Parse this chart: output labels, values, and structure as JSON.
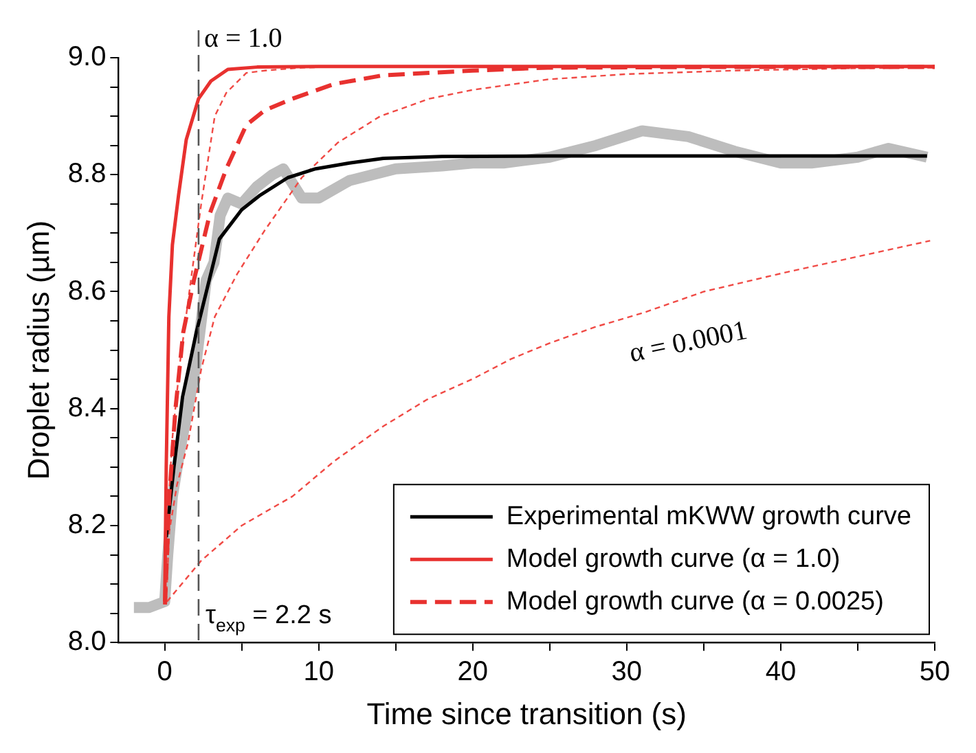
{
  "chart_data": {
    "type": "line",
    "xlabel": "Time since transition (s)",
    "ylabel": "Droplet radius (µm)",
    "xlim": [
      -3,
      50
    ],
    "xticks": [
      0,
      {
        "value": 5,
        "label": null
      },
      10,
      {
        "value": 15,
        "label": null
      },
      20,
      {
        "value": 25,
        "label": null
      },
      30,
      {
        "value": 35,
        "label": null
      },
      40,
      {
        "value": 45,
        "label": null
      },
      50
    ],
    "ylim": [
      8.0,
      9.0
    ],
    "yticks": [
      {
        "value": 8.0,
        "label": "8.0"
      },
      {
        "value": 8.05,
        "label": null
      },
      {
        "value": 8.1,
        "label": null
      },
      {
        "value": 8.15,
        "label": null
      },
      8.2,
      {
        "value": 8.25,
        "label": null
      },
      {
        "value": 8.3,
        "label": null
      },
      {
        "value": 8.35,
        "label": null
      },
      8.4,
      {
        "value": 8.45,
        "label": null
      },
      {
        "value": 8.5,
        "label": null
      },
      {
        "value": 8.55,
        "label": null
      },
      8.6,
      {
        "value": 8.65,
        "label": null
      },
      {
        "value": 8.7,
        "label": null
      },
      {
        "value": 8.75,
        "label": null
      },
      8.8,
      {
        "value": 8.85,
        "label": null
      },
      {
        "value": 8.9,
        "label": null
      },
      {
        "value": 8.95,
        "label": null
      },
      {
        "value": 9.0,
        "label": "9.0"
      }
    ],
    "grid": false,
    "legend": "bottom right",
    "series": [
      {
        "color": "#bdbdbd",
        "line_style": "solid",
        "x": [
          -2,
          -1,
          0,
          0.2,
          0.5,
          1,
          1.5,
          2,
          2.7,
          3.2,
          3.6,
          4.1,
          5,
          6,
          7,
          7.7,
          8.9,
          10,
          12,
          15,
          18,
          20,
          22,
          25,
          28,
          31,
          34,
          37,
          40,
          42,
          45,
          47,
          49.5
        ],
        "values": [
          8.06,
          8.06,
          8.07,
          8.15,
          8.25,
          8.33,
          8.4,
          8.47,
          8.62,
          8.65,
          8.73,
          8.76,
          8.75,
          8.78,
          8.8,
          8.81,
          8.76,
          8.76,
          8.79,
          8.81,
          8.815,
          8.82,
          8.82,
          8.83,
          8.85,
          8.875,
          8.865,
          8.84,
          8.82,
          8.82,
          8.83,
          8.845,
          8.83
        ]
      },
      {
        "color": "#f04a45",
        "line_style": "dotted",
        "x": [
          0.1,
          0.3,
          0.8,
          1.5,
          2.37,
          3.25,
          4.7,
          6.5,
          8.9,
          11.25,
          14,
          17.2,
          20,
          24.9,
          30,
          37,
          45,
          50
        ],
        "values": [
          8.07,
          8.19,
          8.27,
          8.34,
          8.467,
          8.557,
          8.63,
          8.705,
          8.795,
          8.855,
          8.9,
          8.93,
          8.945,
          8.963,
          8.972,
          8.978,
          8.982,
          8.983
        ]
      },
      {
        "color": "#f04a45",
        "line_style": "dotted",
        "x": [
          0.05,
          0.2,
          0.5,
          1,
          1.6,
          2.37,
          3.25,
          4,
          5.3,
          6.5,
          8.9,
          12,
          15
        ],
        "values": [
          8.07,
          8.22,
          8.35,
          8.48,
          8.6,
          8.75,
          8.9,
          8.94,
          8.974,
          8.978,
          8.983,
          8.985,
          8.985
        ]
      },
      {
        "color": "#f04a45",
        "line_style": "dotted",
        "x": [
          0.15,
          2.37,
          5,
          8.3,
          11,
          14.2,
          17,
          20.1,
          22.5,
          25,
          28,
          31.1,
          35,
          40,
          45,
          49.7
        ],
        "values": [
          8.07,
          8.14,
          8.2,
          8.25,
          8.31,
          8.37,
          8.415,
          8.452,
          8.485,
          8.512,
          8.54,
          8.564,
          8.6,
          8.631,
          8.66,
          8.687
        ]
      },
      {
        "name": "Experimental mKWW growth curve",
        "color": "#000000",
        "line_style": "solid",
        "x": [
          0.1,
          0.6,
          1.16,
          2.05,
          3.55,
          5,
          6.2,
          8,
          9.8,
          12,
          14.2,
          18,
          25,
          35,
          49.5
        ],
        "values": [
          8.18,
          8.3,
          8.42,
          8.53,
          8.69,
          8.74,
          8.765,
          8.795,
          8.81,
          8.82,
          8.828,
          8.831,
          8.832,
          8.832,
          8.832
        ]
      },
      {
        "name": "Model growth curve (α = 1.0)",
        "color": "#e8312f",
        "line_style": "solid",
        "x": [
          0,
          0.1,
          0.27,
          0.5,
          0.9,
          1.4,
          2.2,
          3,
          4.1,
          6,
          10,
          20,
          50
        ],
        "values": [
          8.07,
          8.3,
          8.557,
          8.68,
          8.765,
          8.86,
          8.93,
          8.96,
          8.98,
          8.984,
          8.985,
          8.985,
          8.985
        ]
      },
      {
        "name": "Model growth curve (α = 0.0025)",
        "color": "#e8312f",
        "line_style": "dashed",
        "x": [
          0.02,
          0.3,
          0.7,
          1.2,
          1.9,
          2.95,
          4,
          5.3,
          6.5,
          8.3,
          11,
          14.2,
          20,
          24.9,
          35,
          50
        ],
        "values": [
          8.065,
          8.25,
          8.4,
          8.53,
          8.62,
          8.735,
          8.81,
          8.885,
          8.91,
          8.93,
          8.955,
          8.97,
          8.978,
          8.983,
          8.984,
          8.984
        ]
      }
    ],
    "ref_lines": [
      {
        "axis": "x",
        "value": 2.2,
        "label": "τ$_{exp}$ = 2.2 s",
        "color": "#555555",
        "line_style": "dashed"
      }
    ],
    "annotations": [
      "α = 1.0",
      "α = 0.0001"
    ]
  }
}
